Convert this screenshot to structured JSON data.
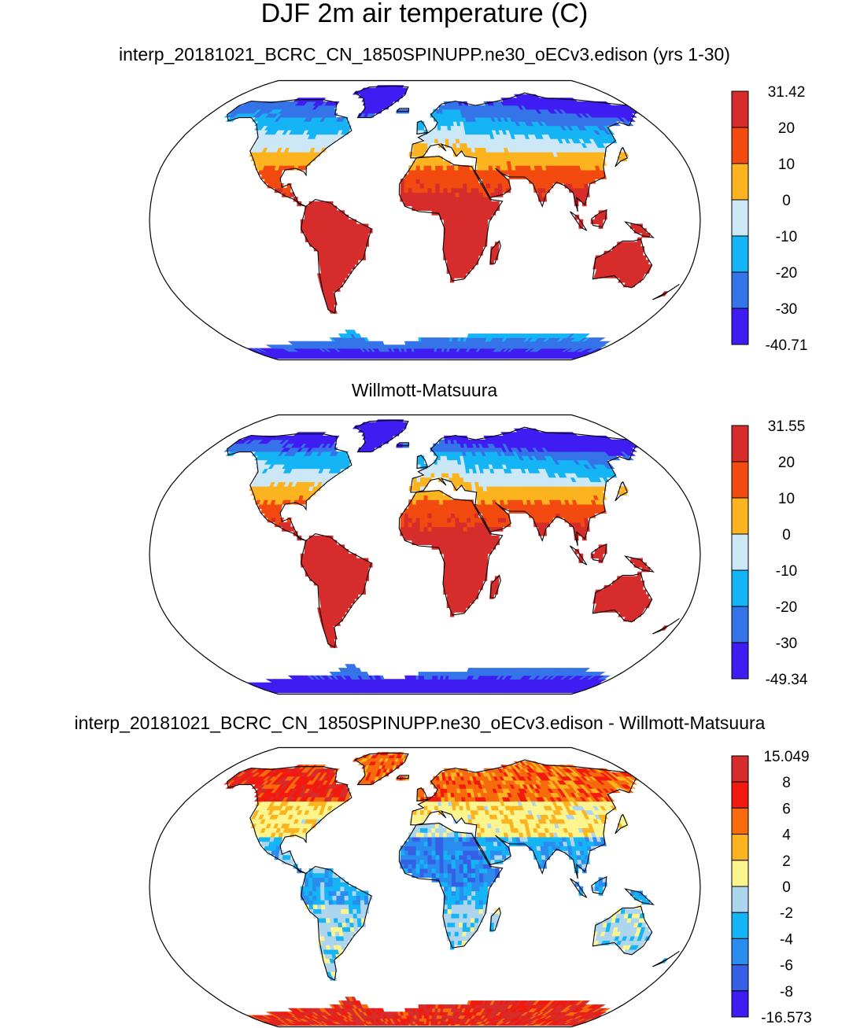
{
  "title": "DJF 2m air temperature (C)",
  "chart_data": [
    {
      "type": "heatmap",
      "title": "interp_20181021_BCRC_CN_1850SPINUPP.ne30_oECv3.edison (yrs 1-30)",
      "projection": "robinson",
      "colorbar": {
        "labels": [
          "31.42",
          "20",
          "10",
          "0",
          "-10",
          "-20",
          "-30",
          "-40.71"
        ],
        "colors": [
          "#d62c2c",
          "#f24a0f",
          "#fbb31f",
          "#cce7f5",
          "#14b4f5",
          "#3574e8",
          "#3f1df2"
        ],
        "min": -40.71,
        "max": 31.42
      }
    },
    {
      "type": "heatmap",
      "title": "Willmott-Matsuura",
      "projection": "robinson",
      "colorbar": {
        "labels": [
          "31.55",
          "20",
          "10",
          "0",
          "-10",
          "-20",
          "-30",
          "-49.34"
        ],
        "colors": [
          "#d62c2c",
          "#f24a0f",
          "#fbb31f",
          "#cce7f5",
          "#14b4f5",
          "#3574e8",
          "#3f1df2"
        ],
        "min": -49.34,
        "max": 31.55
      }
    },
    {
      "type": "heatmap",
      "title": "interp_20181021_BCRC_CN_1850SPINUPP.ne30_oECv3.edison - Willmott-Matsuura",
      "projection": "robinson",
      "colorbar": {
        "labels": [
          "15.049",
          "8",
          "6",
          "4",
          "2",
          "0",
          "-2",
          "-4",
          "-6",
          "-8",
          "-16.573"
        ],
        "colors": [
          "#d62c2c",
          "#f21a0f",
          "#f76b0c",
          "#fbb31f",
          "#fcf48c",
          "#aed5ee",
          "#14b4f5",
          "#2b8cf0",
          "#3560e6",
          "#3f1df2"
        ],
        "min": -16.573,
        "max": 15.049
      }
    }
  ]
}
